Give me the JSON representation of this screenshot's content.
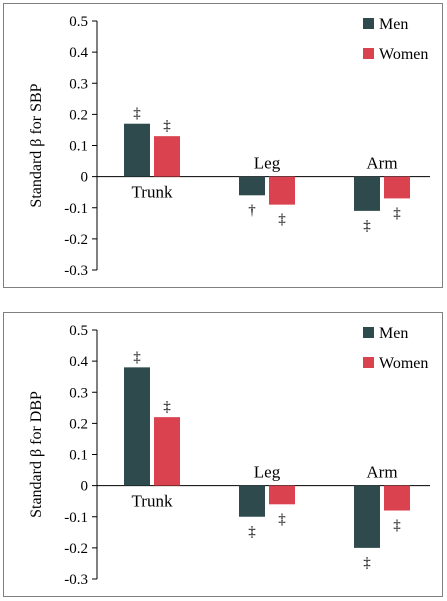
{
  "colors": {
    "men": "#2f4a4d",
    "women": "#d9424e",
    "axis": "#000000",
    "frame": "#7f7f7f"
  },
  "chart_data": [
    {
      "type": "bar",
      "ylabel": "Standard β for SBP",
      "ylim": [
        -0.3,
        0.5
      ],
      "yticks": [
        "0.5",
        "0.4",
        "0.3",
        "0.2",
        "0.1",
        "0",
        "-0.1",
        "-0.2",
        "-0.3"
      ],
      "categories": [
        "Trunk",
        "Leg",
        "Arm"
      ],
      "series": [
        {
          "name": "Men",
          "values": [
            0.17,
            -0.06,
            -0.11
          ],
          "markers": [
            "‡",
            "†",
            "‡"
          ]
        },
        {
          "name": "Women",
          "values": [
            0.13,
            -0.09,
            -0.07
          ],
          "markers": [
            "‡",
            "‡",
            "‡"
          ]
        }
      ],
      "legend": "top-right",
      "grid": false
    },
    {
      "type": "bar",
      "ylabel": "Standard β for DBP",
      "ylim": [
        -0.3,
        0.5
      ],
      "yticks": [
        "0.5",
        "0.4",
        "0.3",
        "0.2",
        "0.1",
        "0",
        "-0.1",
        "-0.2",
        "-0.3"
      ],
      "categories": [
        "Trunk",
        "Leg",
        "Arm"
      ],
      "series": [
        {
          "name": "Men",
          "values": [
            0.38,
            -0.1,
            -0.2
          ],
          "markers": [
            "‡",
            "‡",
            "‡"
          ]
        },
        {
          "name": "Women",
          "values": [
            0.22,
            -0.06,
            -0.08
          ],
          "markers": [
            "‡",
            "‡",
            "‡"
          ]
        }
      ],
      "legend": "top-right",
      "grid": false
    }
  ]
}
